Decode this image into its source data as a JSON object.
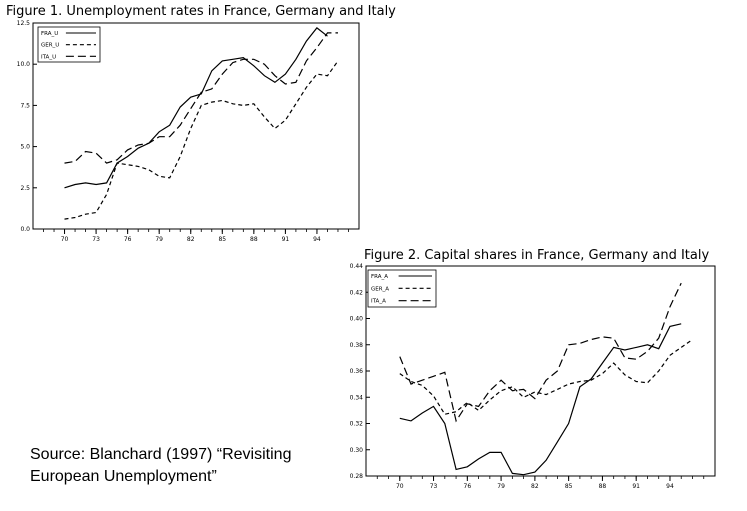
{
  "figures": {
    "fig1_title": "Figure 1. Unemployment rates in France, Germany and Italy",
    "fig2_title": "Figure 2. Capital shares in France, Germany and Italy"
  },
  "source_text": "Source: Blanchard (1997) “Revisiting European Unemployment”",
  "chart_data": [
    {
      "type": "line",
      "title": "Figure 1. Unemployment rates in France, Germany and Italy",
      "xlabel": "",
      "ylabel": "",
      "xlim": [
        1967,
        1998
      ],
      "ylim": [
        0,
        12.5
      ],
      "x_ticks": [
        70,
        73,
        76,
        79,
        82,
        85,
        88,
        91,
        94
      ],
      "y_ticks": [
        "0.0",
        "2.5",
        "5.0",
        "7.5",
        "10.0",
        "12.5"
      ],
      "grid": false,
      "legend_position": "top-left",
      "x": [
        1970,
        1971,
        1972,
        1973,
        1974,
        1975,
        1976,
        1977,
        1978,
        1979,
        1980,
        1981,
        1982,
        1983,
        1984,
        1985,
        1986,
        1987,
        1988,
        1989,
        1990,
        1991,
        1992,
        1993,
        1994,
        1995,
        1996,
        1997
      ],
      "series": [
        {
          "name": "FRA_U",
          "dash": "solid",
          "values": [
            2.5,
            2.7,
            2.8,
            2.7,
            2.8,
            4.0,
            4.4,
            4.9,
            5.2,
            5.9,
            6.3,
            7.4,
            8.0,
            8.2,
            9.6,
            10.2,
            10.3,
            10.4,
            9.9,
            9.3,
            8.9,
            9.4,
            10.3,
            11.4,
            12.2,
            11.7,
            null,
            null
          ]
        },
        {
          "name": "GER_U",
          "dash": "short",
          "values": [
            0.6,
            0.7,
            0.9,
            1.0,
            2.1,
            4.0,
            3.9,
            3.8,
            3.6,
            3.2,
            3.1,
            4.4,
            6.1,
            7.5,
            7.7,
            7.8,
            7.6,
            7.5,
            7.6,
            6.8,
            6.1,
            6.6,
            7.6,
            8.6,
            9.4,
            9.3,
            10.2,
            null
          ]
        },
        {
          "name": "ITA_U",
          "dash": "long",
          "values": [
            4.0,
            4.1,
            4.7,
            4.6,
            4.0,
            4.2,
            4.8,
            5.1,
            5.2,
            5.6,
            5.6,
            6.3,
            7.3,
            8.3,
            8.5,
            9.4,
            10.1,
            10.3,
            10.3,
            10.0,
            9.3,
            8.8,
            8.9,
            10.2,
            11.0,
            11.9,
            11.9,
            null
          ]
        }
      ]
    },
    {
      "type": "line",
      "title": "Figure 2. Capital shares in France, Germany and Italy",
      "xlabel": "",
      "ylabel": "",
      "xlim": [
        1967,
        1998
      ],
      "ylim": [
        0.28,
        0.44
      ],
      "x_ticks": [
        70,
        73,
        76,
        79,
        82,
        85,
        88,
        91,
        94
      ],
      "y_ticks": [
        "0.28",
        "0.30",
        "0.32",
        "0.34",
        "0.36",
        "0.38",
        "0.40",
        "0.42",
        "0.44"
      ],
      "grid": false,
      "legend_position": "top-left",
      "x": [
        1970,
        1971,
        1972,
        1973,
        1974,
        1975,
        1976,
        1977,
        1978,
        1979,
        1980,
        1981,
        1982,
        1983,
        1984,
        1985,
        1986,
        1987,
        1988,
        1989,
        1990,
        1991,
        1992,
        1993,
        1994,
        1995,
        1996,
        1997
      ],
      "series": [
        {
          "name": "FRA_A",
          "dash": "solid",
          "values": [
            0.324,
            0.322,
            0.328,
            0.333,
            0.32,
            0.285,
            0.287,
            0.293,
            0.298,
            0.298,
            0.282,
            0.281,
            0.283,
            0.292,
            0.306,
            0.32,
            0.348,
            0.354,
            0.366,
            0.378,
            0.376,
            0.378,
            0.38,
            0.377,
            0.394,
            0.396,
            null,
            null
          ]
        },
        {
          "name": "GER_A",
          "dash": "short",
          "values": [
            0.358,
            0.352,
            0.349,
            0.341,
            0.327,
            0.329,
            0.336,
            0.33,
            0.338,
            0.345,
            0.348,
            0.34,
            0.344,
            0.342,
            0.346,
            0.35,
            0.352,
            0.353,
            0.358,
            0.366,
            0.357,
            0.352,
            0.351,
            0.36,
            0.372,
            0.378,
            0.384,
            null
          ]
        },
        {
          "name": "ITA_A",
          "dash": "long",
          "values": [
            0.371,
            0.35,
            0.353,
            0.356,
            0.359,
            0.322,
            0.335,
            0.333,
            0.345,
            0.353,
            0.345,
            0.346,
            0.339,
            0.353,
            0.36,
            0.38,
            0.381,
            0.384,
            0.386,
            0.385,
            0.37,
            0.369,
            0.375,
            0.385,
            0.409,
            0.427,
            null,
            null
          ]
        }
      ]
    }
  ]
}
